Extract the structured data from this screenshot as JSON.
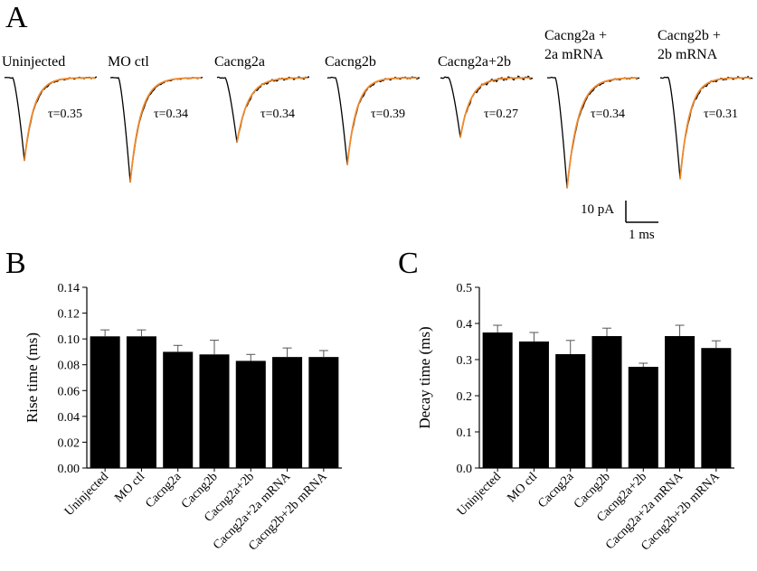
{
  "panels": {
    "a_letter": "A",
    "b_letter": "B",
    "c_letter": "C"
  },
  "traces": [
    {
      "label": [
        "Uninjected"
      ],
      "tau": "τ=0.35",
      "amp": 1.0,
      "wiggle": 0.35
    },
    {
      "label": [
        "MO ctl"
      ],
      "tau": "τ=0.34",
      "amp": 1.26,
      "wiggle": 0.25
    },
    {
      "label": [
        "Cacng2a"
      ],
      "tau": "τ=0.34",
      "amp": 0.78,
      "wiggle": 0.55
    },
    {
      "label": [
        "Cacng2b"
      ],
      "tau": "τ=0.39",
      "amp": 1.05,
      "wiggle": 0.45
    },
    {
      "label": [
        "Cacng2a+2b"
      ],
      "tau": "τ=0.27",
      "amp": 0.72,
      "wiggle": 0.75
    },
    {
      "label": [
        "Cacng2a +",
        "2a mRNA"
      ],
      "tau": "τ=0.34",
      "amp": 1.33,
      "wiggle": 0.35
    },
    {
      "label": [
        "Cacng2b +",
        "2b mRNA"
      ],
      "tau": "τ=0.31",
      "amp": 1.22,
      "wiggle": 0.55
    }
  ],
  "scale_bar": {
    "y_label": "10 pA",
    "x_label": "1 ms"
  },
  "colors": {
    "trace": "#000000",
    "fit": "#f0892b",
    "bar": "#000000"
  },
  "chart_data": [
    {
      "type": "bar",
      "panel": "B",
      "categories": [
        "Uninjected",
        "MO ctl",
        "Cacng2a",
        "Cacng2b",
        "Cacng2a+2b",
        "Cacng2a+2a mRNA",
        "Cacng2b+2b mRNA"
      ],
      "values": [
        0.102,
        0.102,
        0.09,
        0.088,
        0.083,
        0.086,
        0.086
      ],
      "errors": [
        0.005,
        0.005,
        0.005,
        0.011,
        0.005,
        0.007,
        0.005
      ],
      "title": "",
      "xlabel": "",
      "ylabel": "Rise time (ms)",
      "ylim": [
        0,
        0.14
      ],
      "yticks": [
        "0.00",
        "0.02",
        "0.04",
        "0.06",
        "0.08",
        "0.10",
        "0.12",
        "0.14"
      ],
      "grid": false
    },
    {
      "type": "bar",
      "panel": "C",
      "categories": [
        "Uninjected",
        "MO ctl",
        "Cacng2a",
        "Cacng2b",
        "Cacng2a+2b",
        "Cacng2a+2a mRNA",
        "Cacng2b+2b mRNA"
      ],
      "values": [
        0.375,
        0.35,
        0.315,
        0.365,
        0.28,
        0.365,
        0.332
      ],
      "errors": [
        0.02,
        0.025,
        0.038,
        0.022,
        0.01,
        0.03,
        0.02
      ],
      "title": "",
      "xlabel": "",
      "ylabel": "Decay time (ms)",
      "ylim": [
        0,
        0.5
      ],
      "yticks": [
        "0.0",
        "0.1",
        "0.2",
        "0.3",
        "0.4",
        "0.5"
      ],
      "grid": false
    }
  ]
}
